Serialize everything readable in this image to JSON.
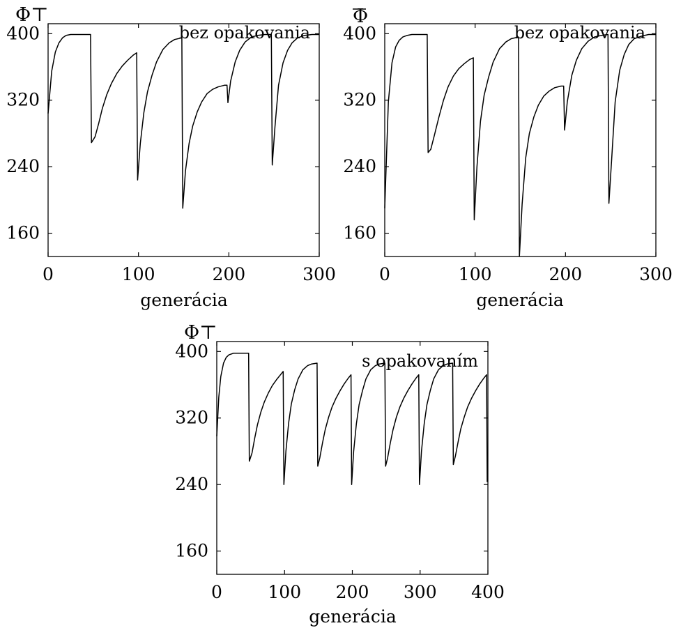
{
  "chart_data": [
    {
      "type": "line",
      "ylabel": "Φ⊤",
      "xlabel": "generácia",
      "annotation": "bez opakovania",
      "xlim": [
        0,
        300
      ],
      "ylim": [
        132,
        412
      ],
      "xticks": [
        0,
        100,
        200,
        300
      ],
      "xtick_labels": [
        "0",
        "100",
        "200",
        "300"
      ],
      "yticks": [
        160,
        240,
        320,
        400
      ],
      "ytick_labels": [
        "160",
        "240",
        "320",
        "400"
      ],
      "grid": false,
      "series": [
        {
          "x": [
            0,
            4,
            8,
            12,
            16,
            20,
            25,
            30,
            40,
            47,
            48,
            52,
            56,
            60,
            65,
            70,
            76,
            82,
            88,
            94,
            98,
            99,
            102,
            106,
            110,
            115,
            120,
            127,
            134,
            140,
            148,
            149,
            152,
            156,
            160,
            165,
            170,
            176,
            182,
            188,
            195,
            198,
            199,
            202,
            207,
            212,
            218,
            225,
            232,
            240,
            247,
            248,
            251,
            255,
            260,
            265,
            270,
            276,
            284,
            292,
            300
          ],
          "y": [
            304,
            355,
            378,
            389,
            395,
            398,
            399,
            399,
            399,
            399,
            269,
            276,
            292,
            310,
            327,
            340,
            352,
            361,
            368,
            374,
            377,
            224,
            268,
            305,
            330,
            350,
            366,
            381,
            389,
            393,
            395,
            190,
            235,
            268,
            289,
            306,
            318,
            328,
            333,
            336,
            338,
            338,
            317,
            343,
            366,
            380,
            390,
            396,
            398,
            399,
            399,
            242,
            288,
            338,
            365,
            380,
            389,
            395,
            398,
            399,
            399
          ]
        }
      ]
    },
    {
      "type": "line",
      "ylabel": "Φ",
      "xlabel": "generácia",
      "annotation": "bez opakovania",
      "xlim": [
        0,
        300
      ],
      "ylim": [
        132,
        412
      ],
      "xticks": [
        0,
        100,
        200,
        300
      ],
      "xtick_labels": [
        "0",
        "100",
        "200",
        "300"
      ],
      "yticks": [
        160,
        240,
        320,
        400
      ],
      "ytick_labels": [
        "160",
        "240",
        "320",
        "400"
      ],
      "grid": false,
      "series": [
        {
          "x": [
            0,
            4,
            8,
            12,
            16,
            20,
            25,
            30,
            40,
            47,
            48,
            51,
            55,
            60,
            65,
            70,
            76,
            82,
            88,
            94,
            98,
            99,
            102,
            106,
            110,
            115,
            120,
            127,
            134,
            140,
            148,
            149,
            152,
            156,
            160,
            165,
            170,
            176,
            182,
            188,
            195,
            198,
            199,
            202,
            207,
            212,
            218,
            225,
            232,
            240,
            247,
            248,
            251,
            255,
            260,
            265,
            270,
            276,
            284,
            292,
            300
          ],
          "y": [
            190,
            318,
            365,
            384,
            392,
            396,
            398,
            399,
            399,
            399,
            257,
            261,
            278,
            300,
            320,
            336,
            349,
            358,
            364,
            369,
            371,
            176,
            240,
            295,
            326,
            348,
            366,
            382,
            390,
            394,
            396,
            132,
            195,
            251,
            280,
            300,
            314,
            325,
            331,
            335,
            337,
            337,
            284,
            318,
            350,
            368,
            382,
            391,
            396,
            398,
            399,
            196,
            248,
            318,
            356,
            375,
            387,
            394,
            397,
            399,
            399
          ]
        }
      ]
    },
    {
      "type": "line",
      "ylabel": "Φ⊤",
      "xlabel": "generácia",
      "annotation": "s opakovaním",
      "xlim": [
        0,
        400
      ],
      "ylim": [
        132,
        412
      ],
      "xticks": [
        0,
        100,
        200,
        300,
        400
      ],
      "xtick_labels": [
        "0",
        "100",
        "200",
        "300",
        "400"
      ],
      "yticks": [
        160,
        240,
        320,
        400
      ],
      "ytick_labels": [
        "160",
        "240",
        "320",
        "400"
      ],
      "grid": false,
      "series": [
        {
          "x": [
            0,
            3,
            6,
            10,
            14,
            18,
            25,
            35,
            47,
            48,
            52,
            56,
            60,
            65,
            70,
            76,
            82,
            88,
            94,
            98,
            99,
            102,
            106,
            110,
            115,
            120,
            127,
            134,
            140,
            148,
            149,
            152,
            156,
            160,
            165,
            170,
            176,
            182,
            188,
            194,
            198,
            199,
            202,
            206,
            210,
            215,
            220,
            227,
            234,
            240,
            248,
            249,
            252,
            256,
            260,
            265,
            270,
            276,
            282,
            288,
            294,
            298,
            299,
            302,
            306,
            310,
            315,
            320,
            327,
            334,
            340,
            348,
            349,
            352,
            356,
            360,
            365,
            370,
            376,
            382,
            388,
            394,
            398,
            399
          ],
          "y": [
            298,
            345,
            370,
            386,
            393,
            396,
            398,
            398,
            398,
            268,
            278,
            296,
            312,
            327,
            339,
            350,
            359,
            366,
            372,
            376,
            240,
            280,
            314,
            337,
            354,
            367,
            378,
            383,
            385,
            386,
            262,
            272,
            290,
            306,
            321,
            333,
            344,
            353,
            361,
            368,
            372,
            240,
            280,
            313,
            336,
            353,
            367,
            378,
            383,
            385,
            386,
            262,
            272,
            290,
            306,
            321,
            333,
            344,
            353,
            361,
            368,
            372,
            240,
            280,
            313,
            336,
            353,
            367,
            378,
            383,
            385,
            386,
            264,
            274,
            291,
            307,
            321,
            333,
            344,
            353,
            361,
            368,
            372,
            243
          ]
        }
      ]
    }
  ]
}
